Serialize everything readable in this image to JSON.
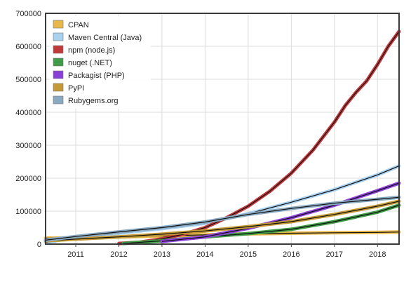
{
  "chart_data": {
    "type": "line",
    "title": "",
    "xlabel": "",
    "ylabel": "",
    "xlim": [
      2010.3,
      2018.5
    ],
    "ylim": [
      0,
      700000
    ],
    "x_ticks": [
      {
        "value": 2011,
        "label": "2011"
      },
      {
        "value": 2012,
        "label": "2012"
      },
      {
        "value": 2013,
        "label": "2013"
      },
      {
        "value": 2014,
        "label": "2014"
      },
      {
        "value": 2015,
        "label": "2015"
      },
      {
        "value": 2016,
        "label": "2016"
      },
      {
        "value": 2017,
        "label": "2017"
      },
      {
        "value": 2018,
        "label": "2018"
      }
    ],
    "y_ticks": [
      {
        "value": 0,
        "label": "0"
      },
      {
        "value": 100000,
        "label": "100000"
      },
      {
        "value": 200000,
        "label": "200000"
      },
      {
        "value": 300000,
        "label": "300000"
      },
      {
        "value": 400000,
        "label": "400000"
      },
      {
        "value": 500000,
        "label": "500000"
      },
      {
        "value": 600000,
        "label": "600000"
      },
      {
        "value": 700000,
        "label": "700000"
      }
    ],
    "grid": true,
    "legend_position": "top-left",
    "series": [
      {
        "name": "CPAN",
        "color": "#e8b84a",
        "points": [
          [
            2010.3,
            18000
          ],
          [
            2011,
            19000
          ],
          [
            2012,
            22000
          ],
          [
            2013,
            25000
          ],
          [
            2014,
            28000
          ],
          [
            2015,
            31000
          ],
          [
            2016,
            33000
          ],
          [
            2017,
            34500
          ],
          [
            2018,
            35500
          ],
          [
            2018.5,
            36500
          ]
        ]
      },
      {
        "name": "Maven Central (Java)",
        "color": "#a9d1f0",
        "points": [
          [
            2010.3,
            5000
          ],
          [
            2011,
            20000
          ],
          [
            2012,
            33000
          ],
          [
            2013,
            47000
          ],
          [
            2014,
            63000
          ],
          [
            2015,
            92000
          ],
          [
            2016,
            127000
          ],
          [
            2017,
            165000
          ],
          [
            2018,
            210000
          ],
          [
            2018.5,
            237000
          ]
        ]
      },
      {
        "name": "npm (node.js)",
        "color": "#c0393b",
        "points": [
          [
            2012,
            2000
          ],
          [
            2012.5,
            6000
          ],
          [
            2013,
            16000
          ],
          [
            2013.5,
            30000
          ],
          [
            2014,
            50000
          ],
          [
            2014.5,
            80000
          ],
          [
            2015,
            115000
          ],
          [
            2015.5,
            160000
          ],
          [
            2016,
            215000
          ],
          [
            2016.5,
            285000
          ],
          [
            2017,
            370000
          ],
          [
            2017.25,
            420000
          ],
          [
            2017.5,
            460000
          ],
          [
            2017.75,
            495000
          ],
          [
            2018,
            545000
          ],
          [
            2018.25,
            600000
          ],
          [
            2018.5,
            645000
          ]
        ]
      },
      {
        "name": "nuget (.NET)",
        "color": "#3f9b46",
        "points": [
          [
            2012.1,
            2000
          ],
          [
            2013,
            10000
          ],
          [
            2014,
            22000
          ],
          [
            2015,
            32000
          ],
          [
            2016,
            45000
          ],
          [
            2017,
            68000
          ],
          [
            2018,
            97000
          ],
          [
            2018.5,
            118000
          ]
        ]
      },
      {
        "name": "Packagist (PHP)",
        "color": "#8a3fd9",
        "points": [
          [
            2013,
            8000
          ],
          [
            2014,
            22000
          ],
          [
            2015,
            48000
          ],
          [
            2016,
            80000
          ],
          [
            2017,
            118000
          ],
          [
            2018,
            162000
          ],
          [
            2018.5,
            185000
          ]
        ]
      },
      {
        "name": "PyPI",
        "color": "#c49a36",
        "points": [
          [
            2010.3,
            10000
          ],
          [
            2011,
            15000
          ],
          [
            2012,
            22000
          ],
          [
            2013,
            30000
          ],
          [
            2014,
            40000
          ],
          [
            2015,
            53000
          ],
          [
            2016,
            68000
          ],
          [
            2017,
            90000
          ],
          [
            2018,
            115000
          ],
          [
            2018.5,
            130000
          ]
        ]
      },
      {
        "name": "Rubygems.org",
        "color": "#8aaac2",
        "points": [
          [
            2010.3,
            12000
          ],
          [
            2011,
            23000
          ],
          [
            2012,
            37000
          ],
          [
            2013,
            50000
          ],
          [
            2014,
            67000
          ],
          [
            2015,
            90000
          ],
          [
            2016,
            108000
          ],
          [
            2017,
            124000
          ],
          [
            2018,
            136000
          ],
          [
            2018.5,
            142000
          ]
        ]
      }
    ]
  }
}
